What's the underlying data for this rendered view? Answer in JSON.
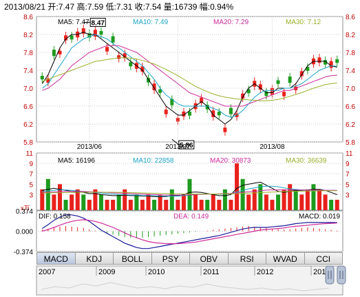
{
  "header": {
    "date": "2013/08/21",
    "open_label": "开",
    "open": "7.47",
    "high_label": "高",
    "high": "7.59",
    "low_label": "低",
    "low": "7.31",
    "close_label": "收",
    "close": "7.54",
    "volume_label": "量",
    "volume": "16739",
    "change_label": "幅",
    "change": "0.94%"
  },
  "main_legend": [
    {
      "label": "MA5:",
      "value": "7.47",
      "color": "#000000"
    },
    {
      "label": "MA10:",
      "value": "7.49",
      "color": "#1aa3c7"
    },
    {
      "label": "MA20:",
      "value": "7.29",
      "color": "#cc2a9a"
    },
    {
      "label": "MA30:",
      "value": "7.12",
      "color": "#9ab028"
    }
  ],
  "volume_legend": [
    {
      "label": "MA5:",
      "value": "16196",
      "color": "#000000"
    },
    {
      "label": "MA10:",
      "value": "22858",
      "color": "#1aa3c7"
    },
    {
      "label": "MA20:",
      "value": "30873",
      "color": "#cc2a9a"
    },
    {
      "label": "MA30:",
      "value": "36639",
      "color": "#9ab028"
    }
  ],
  "macd_legend": {
    "dif_label": "DIF:",
    "dif": "0.158",
    "dea_label": "DEA:",
    "dea": "0.149",
    "macd_label": "MACD:",
    "macd": "0.019"
  },
  "tabs": [
    "MACD",
    "KDJ",
    "BOLL",
    "PSY",
    "OBV",
    "RSI",
    "WVAD",
    "CCI"
  ],
  "active_tab": "MACD",
  "timeline": {
    "years": [
      "2007",
      "2009",
      "2010",
      "2011",
      "2012",
      "2013"
    ]
  },
  "colors": {
    "up": "#e8211c",
    "down": "#1e9b1e",
    "grid": "#c8c8c8",
    "axis_text": "#c00000"
  },
  "chart_data": [
    {
      "type": "candlestick",
      "ylim": [
        5.8,
        8.6
      ],
      "yticks": [
        "8.6",
        "8.2",
        "7.8",
        "7.4",
        "7.0",
        "6.6",
        "6.2",
        "5.8"
      ],
      "x_ticks": [
        "2013/06",
        "2013/07",
        "2013/08"
      ],
      "annotations": [
        {
          "text": "8.47",
          "value": 8.47
        },
        {
          "text": "5.86",
          "value": 5.86
        }
      ],
      "series": [
        {
          "name": "MA5",
          "values": [
            7.1,
            7.3,
            7.6,
            7.9,
            8.1,
            8.2,
            8.2,
            8.25,
            8.2,
            8.2,
            8.1,
            8.0,
            7.9,
            7.8,
            7.7,
            7.6,
            7.5,
            7.4,
            7.2,
            7.0,
            6.8,
            6.6,
            6.5,
            6.4,
            6.4,
            6.5,
            6.6,
            6.7,
            6.6,
            6.4,
            6.3,
            6.2,
            6.3,
            6.5,
            6.8,
            7.0,
            7.1,
            7.0,
            6.9,
            6.9,
            7.0,
            7.0,
            7.0,
            7.1,
            7.3,
            7.5,
            7.6,
            7.6,
            7.6,
            7.5,
            7.47
          ]
        },
        {
          "name": "MA10",
          "values": [
            7.0,
            7.1,
            7.3,
            7.5,
            7.7,
            7.9,
            8.0,
            8.1,
            8.15,
            8.2,
            8.15,
            8.1,
            8.0,
            7.9,
            7.8,
            7.7,
            7.6,
            7.5,
            7.35,
            7.2,
            7.0,
            6.85,
            6.75,
            6.65,
            6.6,
            6.6,
            6.6,
            6.6,
            6.6,
            6.55,
            6.5,
            6.4,
            6.35,
            6.4,
            6.5,
            6.65,
            6.8,
            6.9,
            6.95,
            6.95,
            6.95,
            7.0,
            7.0,
            7.05,
            7.1,
            7.2,
            7.3,
            7.4,
            7.45,
            7.5,
            7.49
          ]
        },
        {
          "name": "MA20",
          "values": [
            6.95,
            7.0,
            7.1,
            7.2,
            7.35,
            7.5,
            7.6,
            7.7,
            7.8,
            7.85,
            7.9,
            7.95,
            7.95,
            7.95,
            7.9,
            7.85,
            7.8,
            7.7,
            7.6,
            7.5,
            7.4,
            7.3,
            7.2,
            7.1,
            7.0,
            6.9,
            6.85,
            6.8,
            6.75,
            6.7,
            6.65,
            6.6,
            6.6,
            6.6,
            6.6,
            6.65,
            6.7,
            6.75,
            6.8,
            6.85,
            6.9,
            6.95,
            6.95,
            7.0,
            7.05,
            7.1,
            7.15,
            7.2,
            7.25,
            7.28,
            7.29
          ]
        },
        {
          "name": "MA30",
          "values": [
            7.15,
            7.2,
            7.25,
            7.3,
            7.35,
            7.4,
            7.45,
            7.5,
            7.55,
            7.6,
            7.62,
            7.64,
            7.66,
            7.68,
            7.68,
            7.67,
            7.65,
            7.62,
            7.58,
            7.54,
            7.48,
            7.42,
            7.35,
            7.28,
            7.2,
            7.12,
            7.04,
            6.98,
            6.92,
            6.87,
            6.83,
            6.8,
            6.78,
            6.76,
            6.75,
            6.74,
            6.73,
            6.72,
            6.72,
            6.73,
            6.75,
            6.78,
            6.82,
            6.86,
            6.9,
            6.95,
            7.0,
            7.04,
            7.08,
            7.1,
            7.12
          ]
        }
      ]
    },
    {
      "type": "bar",
      "ylim": [
        0,
        11
      ],
      "yticks": [
        "11",
        "9",
        "7",
        "5",
        "3"
      ],
      "values": [
        4,
        6,
        3,
        5,
        2,
        3,
        4,
        3,
        2,
        4,
        3,
        2,
        2,
        3,
        4,
        2,
        3,
        2,
        3,
        2,
        3,
        2,
        4,
        2,
        3,
        6,
        3,
        2,
        2,
        3,
        2,
        4,
        2,
        9,
        6,
        3,
        4,
        5,
        3,
        2,
        3,
        4,
        5,
        4,
        3,
        4,
        5,
        4,
        3,
        2,
        2
      ],
      "series": [
        {
          "name": "MA5",
          "values": [
            3.8,
            4.0,
            4.2,
            4.0,
            3.8,
            3.6,
            3.5,
            3.4,
            3.2,
            3.2,
            3.0,
            2.9,
            2.8,
            2.8,
            2.9,
            2.8,
            2.8,
            2.7,
            2.7,
            2.6,
            2.6,
            2.6,
            2.8,
            2.8,
            3.0,
            3.4,
            3.5,
            3.4,
            3.2,
            3.0,
            2.8,
            2.8,
            3.0,
            4.2,
            4.8,
            5.0,
            5.2,
            5.4,
            4.8,
            4.2,
            3.6,
            3.4,
            3.6,
            3.8,
            3.8,
            3.9,
            4.0,
            4.0,
            3.8,
            3.4,
            3.0
          ]
        },
        {
          "name": "MA10",
          "values": [
            3.6,
            3.7,
            3.8,
            3.9,
            3.9,
            3.8,
            3.7,
            3.6,
            3.5,
            3.4,
            3.3,
            3.2,
            3.1,
            3.0,
            3.0,
            2.9,
            2.9,
            2.8,
            2.8,
            2.8,
            2.7,
            2.7,
            2.7,
            2.7,
            2.8,
            2.9,
            3.0,
            3.1,
            3.1,
            3.1,
            3.1,
            3.1,
            3.2,
            3.5,
            3.8,
            4.1,
            4.3,
            4.5,
            4.6,
            4.6,
            4.5,
            4.3,
            4.1,
            4.0,
            3.9,
            3.9,
            3.8,
            3.8,
            3.8,
            3.8,
            3.8
          ]
        },
        {
          "name": "MA20",
          "values": [
            3.4,
            3.45,
            3.5,
            3.55,
            3.6,
            3.6,
            3.6,
            3.6,
            3.55,
            3.5,
            3.45,
            3.4,
            3.35,
            3.3,
            3.25,
            3.2,
            3.15,
            3.1,
            3.05,
            3.0,
            2.95,
            2.9,
            2.9,
            2.9,
            2.9,
            2.95,
            3.0,
            3.05,
            3.1,
            3.1,
            3.15,
            3.2,
            3.25,
            3.35,
            3.45,
            3.55,
            3.65,
            3.75,
            3.85,
            3.9,
            3.9,
            3.9,
            3.9,
            3.9,
            3.9,
            3.85,
            3.85,
            3.85,
            3.8,
            3.8,
            3.8
          ]
        },
        {
          "name": "MA30",
          "values": [
            3.3,
            3.32,
            3.34,
            3.36,
            3.38,
            3.4,
            3.42,
            3.44,
            3.45,
            3.46,
            3.46,
            3.45,
            3.44,
            3.42,
            3.4,
            3.37,
            3.34,
            3.31,
            3.28,
            3.25,
            3.22,
            3.19,
            3.16,
            3.14,
            3.12,
            3.11,
            3.1,
            3.1,
            3.1,
            3.11,
            3.12,
            3.14,
            3.17,
            3.2,
            3.24,
            3.28,
            3.33,
            3.38,
            3.43,
            3.48,
            3.52,
            3.56,
            3.6,
            3.63,
            3.66,
            3.68,
            3.7,
            3.72,
            3.73,
            3.74,
            3.75
          ]
        }
      ]
    },
    {
      "type": "line",
      "ylim": [
        -0.374,
        0.374
      ],
      "yticks": [
        "0.374",
        "0.000",
        "-0.374"
      ],
      "histogram": [
        0.05,
        0.08,
        0.12,
        0.14,
        0.16,
        0.14,
        0.12,
        0.1,
        0.06,
        0.02,
        -0.02,
        -0.06,
        -0.1,
        -0.14,
        -0.18,
        -0.2,
        -0.22,
        -0.2,
        -0.18,
        -0.16,
        -0.14,
        -0.12,
        -0.1,
        -0.08,
        -0.06,
        -0.04,
        -0.02,
        0.0,
        0.02,
        0.04,
        0.06,
        0.08,
        0.1,
        0.12,
        0.14,
        0.16,
        0.14,
        0.12,
        0.1,
        0.08,
        0.06,
        0.05,
        0.06,
        0.08,
        0.1,
        0.12,
        0.1,
        0.08,
        0.06,
        0.04,
        0.02
      ],
      "series": [
        {
          "name": "DIF",
          "values": [
            0.05,
            0.12,
            0.2,
            0.26,
            0.3,
            0.3,
            0.28,
            0.24,
            0.18,
            0.1,
            0.02,
            -0.04,
            -0.1,
            -0.16,
            -0.22,
            -0.26,
            -0.3,
            -0.32,
            -0.32,
            -0.3,
            -0.28,
            -0.26,
            -0.24,
            -0.22,
            -0.2,
            -0.18,
            -0.16,
            -0.14,
            -0.12,
            -0.1,
            -0.08,
            -0.05,
            -0.02,
            0.01,
            0.04,
            0.06,
            0.07,
            0.07,
            0.07,
            0.08,
            0.09,
            0.1,
            0.12,
            0.14,
            0.15,
            0.16,
            0.16,
            0.16,
            0.16,
            0.16,
            0.158
          ]
        },
        {
          "name": "DEA",
          "values": [
            0.0,
            0.03,
            0.07,
            0.11,
            0.15,
            0.18,
            0.2,
            0.21,
            0.2,
            0.18,
            0.15,
            0.11,
            0.07,
            0.02,
            -0.03,
            -0.08,
            -0.12,
            -0.16,
            -0.19,
            -0.21,
            -0.22,
            -0.23,
            -0.23,
            -0.23,
            -0.22,
            -0.21,
            -0.2,
            -0.18,
            -0.16,
            -0.14,
            -0.12,
            -0.1,
            -0.08,
            -0.06,
            -0.04,
            -0.02,
            0.0,
            0.02,
            0.03,
            0.04,
            0.05,
            0.06,
            0.08,
            0.09,
            0.1,
            0.11,
            0.12,
            0.13,
            0.14,
            0.145,
            0.149
          ]
        }
      ]
    }
  ]
}
